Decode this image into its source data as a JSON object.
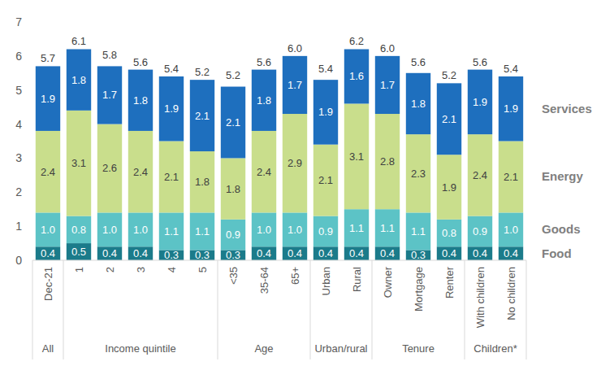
{
  "chart_data": {
    "type": "bar",
    "stacked": true,
    "data_labels": true,
    "grid": false,
    "legend": "right",
    "categories": [
      "Dec-21",
      "1",
      "2",
      "3",
      "4",
      "5",
      "<35",
      "35-64",
      "65+",
      "Urban",
      "Rural",
      "Owner",
      "Mortgage",
      "Renter",
      "With children",
      "No children"
    ],
    "groups": [
      {
        "label": "All",
        "size": 1
      },
      {
        "label": "Income quintile",
        "size": 5
      },
      {
        "label": "Age",
        "size": 3
      },
      {
        "label": "Urban/rural",
        "size": 2
      },
      {
        "label": "Tenure",
        "size": 3
      },
      {
        "label": "Children*",
        "size": 2
      }
    ],
    "ylim": [
      0,
      7
    ],
    "yticks": [
      0,
      1,
      2,
      3,
      4,
      5,
      6,
      7
    ],
    "series": [
      {
        "name": "Food",
        "color": "#1b7b8a",
        "values": [
          0.4,
          0.5,
          0.4,
          0.4,
          0.3,
          0.3,
          0.3,
          0.4,
          0.4,
          0.4,
          0.4,
          0.4,
          0.3,
          0.4,
          0.4,
          0.4
        ],
        "value_labels": [
          "0.4",
          "0.5",
          "0.4",
          "0.4",
          "0.3",
          "0.3",
          "0.3",
          "0.4",
          "0.4",
          "0.4",
          "0.4",
          "0.4",
          "0.3",
          "0.4",
          "0.4",
          "0.4"
        ]
      },
      {
        "name": "Goods",
        "color": "#5cc3c6",
        "values": [
          1,
          0.8,
          1,
          1,
          1.1,
          1.1,
          0.9,
          1,
          1,
          0.9,
          1.1,
          1.1,
          1.1,
          0.8,
          0.9,
          1
        ],
        "value_labels": [
          "1.0",
          "0.8",
          "1.0",
          "1.0",
          "1.1",
          "1.1",
          "0.9",
          "1.0",
          "1.0",
          "0.9",
          "1.1",
          "1.1",
          "1.1",
          "0.8",
          "0.9",
          "1.0"
        ]
      },
      {
        "name": "Energy",
        "color": "#c9de8c",
        "values": [
          2.4,
          3.1,
          2.6,
          2.4,
          2.1,
          1.8,
          1.8,
          2.4,
          2.9,
          2.1,
          3.1,
          2.8,
          2.3,
          1.9,
          2.4,
          2.1
        ],
        "value_labels": [
          "2.4",
          "3.1",
          "2.6",
          "2.4",
          "2.1",
          "1.8",
          "1.8",
          "2.4",
          "2.9",
          "2.1",
          "3.1",
          "2.8",
          "2.3",
          "1.9",
          "2.4",
          "2.1"
        ]
      },
      {
        "name": "Services",
        "color": "#1e6fbe",
        "values": [
          1.9,
          1.8,
          1.7,
          1.8,
          1.9,
          2.1,
          2.1,
          1.8,
          1.7,
          1.9,
          1.6,
          1.7,
          1.8,
          2.1,
          1.9,
          1.9
        ],
        "value_labels": [
          "1.9",
          "1.8",
          "1.7",
          "1.8",
          "1.9",
          "2.1",
          "2.1",
          "1.8",
          "1.7",
          "1.9",
          "1.6",
          "1.7",
          "1.8",
          "2.1",
          "1.9",
          "1.9"
        ]
      }
    ],
    "totals": {
      "values": [
        5.7,
        6.1,
        5.8,
        5.6,
        5.4,
        5.2,
        5.2,
        5.6,
        6,
        5.4,
        6.2,
        6,
        5.6,
        5.2,
        5.6,
        5.4
      ],
      "value_labels": [
        "5.7",
        "6.1",
        "5.8",
        "5.6",
        "5.4",
        "5.2",
        "5.2",
        "5.6",
        "6.0",
        "5.4",
        "6.2",
        "6.0",
        "5.6",
        "5.2",
        "5.6",
        "5.4"
      ]
    }
  }
}
